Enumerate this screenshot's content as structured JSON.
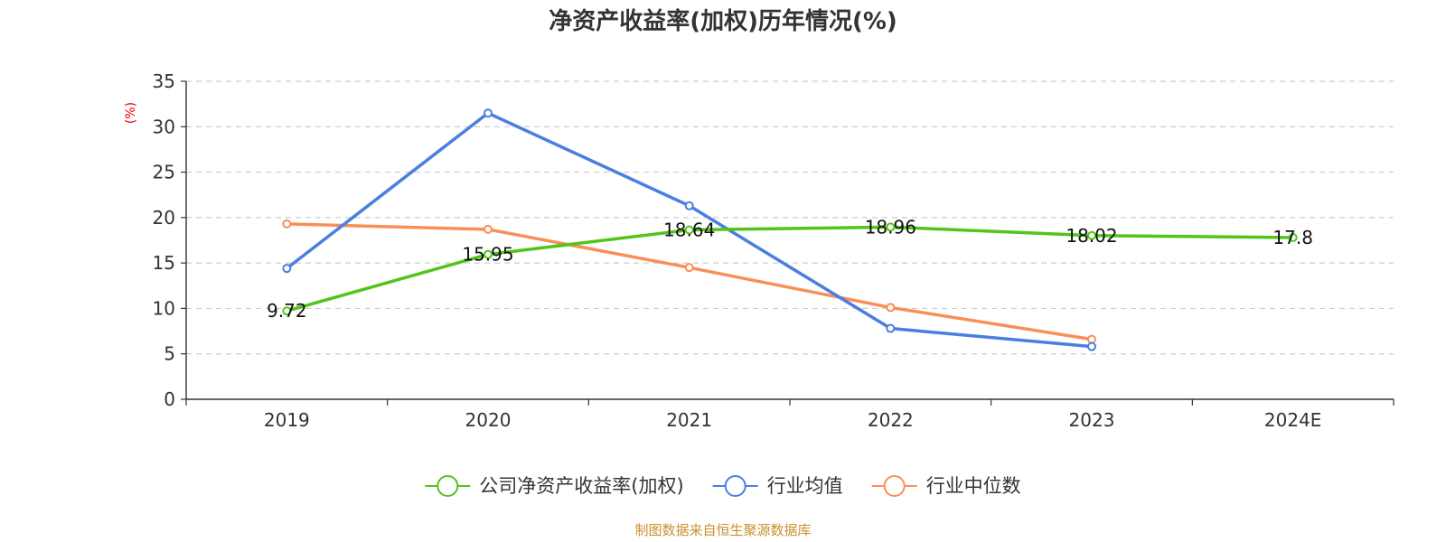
{
  "chart_data": {
    "type": "line",
    "title": "净资产收益率(加权)历年情况(%)",
    "ylabel": "(%)",
    "xlabel": "",
    "categories": [
      "2019",
      "2020",
      "2021",
      "2022",
      "2023",
      "2024E"
    ],
    "ylim": [
      0,
      35
    ],
    "yticks": [
      0,
      5,
      10,
      15,
      20,
      25,
      30,
      35
    ],
    "grid": true,
    "legend_position": "bottom",
    "series": [
      {
        "name": "公司净资产收益率(加权)",
        "color": "#52c41a",
        "values": [
          9.72,
          15.95,
          18.64,
          18.96,
          18.02,
          17.8
        ],
        "labels": [
          "9.72",
          "15.95",
          "18.64",
          "18.96",
          "18.02",
          "17.8"
        ]
      },
      {
        "name": "行业均值",
        "color": "#4a7fe0",
        "values": [
          14.4,
          31.5,
          21.3,
          7.8,
          5.8,
          null
        ]
      },
      {
        "name": "行业中位数",
        "color": "#f98e57",
        "values": [
          19.3,
          18.7,
          14.5,
          10.1,
          6.6,
          null
        ]
      }
    ]
  },
  "source": "制图数据来自恒生聚源数据库"
}
